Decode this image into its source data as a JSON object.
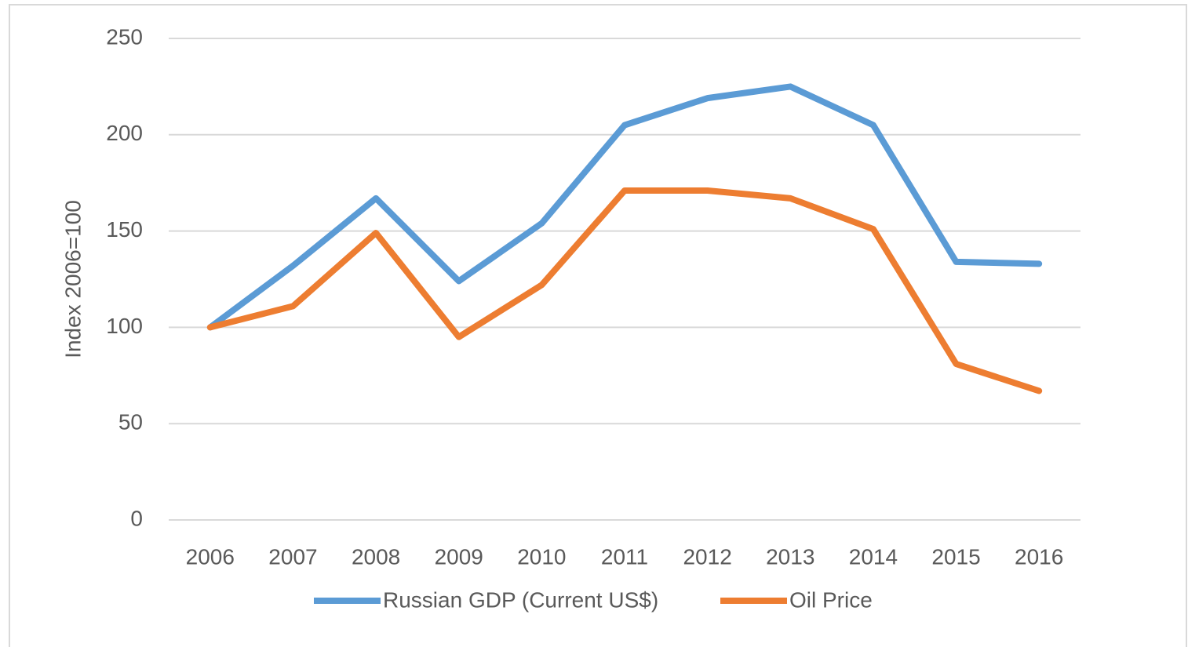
{
  "chart_data": {
    "type": "line",
    "y_label": "Index 2006=100",
    "categories": [
      "2006",
      "2007",
      "2008",
      "2009",
      "2010",
      "2011",
      "2012",
      "2013",
      "2014",
      "2015",
      "2016"
    ],
    "series": [
      {
        "name": "Russian GDP (Current US$)",
        "color": "#5b9bd5",
        "values": [
          100,
          132,
          167,
          124,
          154,
          205,
          219,
          225,
          205,
          134,
          133
        ]
      },
      {
        "name": "Oil Price",
        "color": "#ed7d31",
        "values": [
          100,
          111,
          149,
          95,
          122,
          171,
          171,
          167,
          151,
          81,
          67
        ]
      }
    ],
    "ylim": [
      0,
      250
    ],
    "yticks": [
      0,
      50,
      100,
      150,
      200,
      250
    ],
    "grid": true,
    "legend": "bottom"
  }
}
